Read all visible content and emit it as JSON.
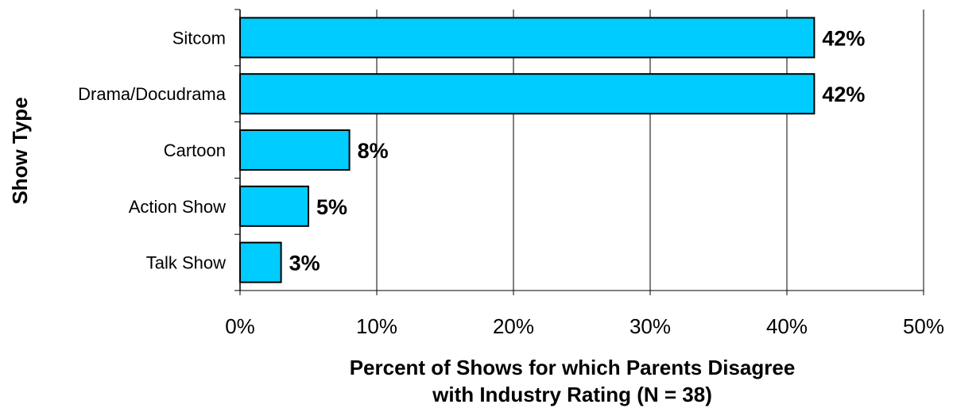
{
  "chart_data": {
    "type": "bar",
    "orientation": "horizontal",
    "categories": [
      "Sitcom",
      "Drama/Docudrama",
      "Cartoon",
      "Action Show",
      "Talk Show"
    ],
    "values": [
      42,
      42,
      8,
      5,
      3
    ],
    "data_labels": [
      "42%",
      "42%",
      "8%",
      "5%",
      "3%"
    ],
    "xlim": [
      0,
      50
    ],
    "x_ticks": [
      0,
      10,
      20,
      30,
      40,
      50
    ],
    "x_tick_labels": [
      "0%",
      "10%",
      "20%",
      "30%",
      "40%",
      "50%"
    ],
    "xlabel_lines": [
      "Percent of Shows for which Parents Disagree",
      "with Industry Rating (N = 38)"
    ],
    "ylabel": "Show Type",
    "grid": "vertical",
    "legend": "none",
    "colors": {
      "bar_fill": "#00CCFF",
      "bar_stroke": "#000000",
      "gridline": "#000000",
      "axis": "#000000",
      "background": "#FFFFFF"
    }
  }
}
